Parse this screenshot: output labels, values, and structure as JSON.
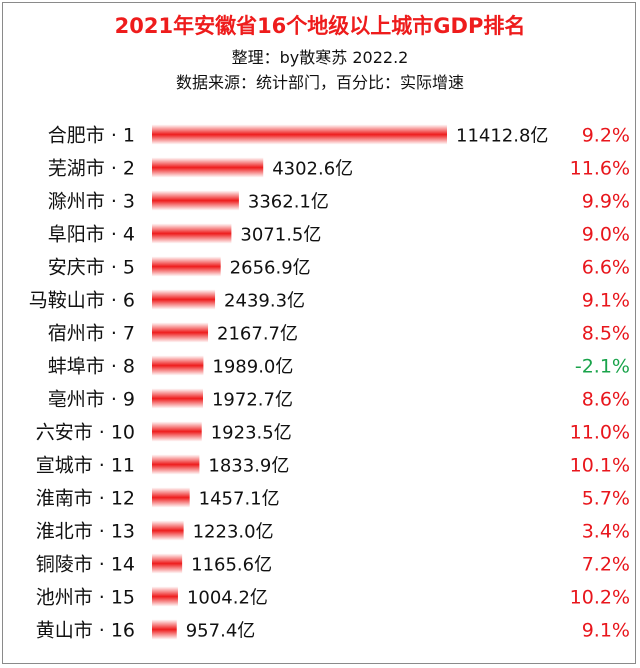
{
  "header": {
    "title": "2021年安徽省16个地级以上城市GDP排名",
    "compiler": "整理：by散寒苏  2022.2",
    "source": "数据来源：统计部门，百分比：实际增速"
  },
  "colors": {
    "title": "#ee1c1c",
    "bar": "#ee1c1c",
    "growth_positive": "#e8161c",
    "growth_negative": "#19a34a"
  },
  "chart_data": {
    "type": "bar",
    "orientation": "horizontal",
    "title": "2021年安徽省16个地级以上城市GDP排名",
    "value_unit": "亿",
    "categories": [
      "合肥市 · 1",
      "芜湖市 · 2",
      "滁州市 · 3",
      "阜阳市 · 4",
      "安庆市 · 5",
      "马鞍山市 · 6",
      "宿州市 · 7",
      "蚌埠市 · 8",
      "亳州市 · 9",
      "六安市 · 10",
      "宣城市 · 11",
      "淮南市 · 12",
      "淮北市 · 13",
      "铜陵市 · 14",
      "池州市 · 15",
      "黄山市 · 16"
    ],
    "values": [
      11412.8,
      4302.6,
      3362.1,
      3071.5,
      2656.9,
      2439.3,
      2167.7,
      1989.0,
      1972.7,
      1923.5,
      1833.9,
      1457.1,
      1223.0,
      1165.6,
      1004.2,
      957.4
    ],
    "value_labels": [
      "11412.8亿",
      "4302.6亿",
      "3362.1亿",
      "3071.5亿",
      "2656.9亿",
      "2439.3亿",
      "2167.7亿",
      "1989.0亿",
      "1972.7亿",
      "1923.5亿",
      "1833.9亿",
      "1457.1亿",
      "1223.0亿",
      "1165.6亿",
      "1004.2亿",
      "957.4亿"
    ],
    "growth": [
      9.2,
      11.6,
      9.9,
      9.0,
      6.6,
      9.1,
      8.5,
      -2.1,
      8.6,
      11.0,
      10.1,
      5.7,
      3.4,
      7.2,
      10.2,
      9.1
    ],
    "growth_labels": [
      "9.2%",
      "11.6%",
      "9.9%",
      "9.0%",
      "6.6%",
      "9.1%",
      "8.5%",
      "-2.1%",
      "8.6%",
      "11.0%",
      "10.1%",
      "5.7%",
      "3.4%",
      "7.2%",
      "10.2%",
      "9.1%"
    ],
    "grid": false,
    "legend": "none"
  }
}
